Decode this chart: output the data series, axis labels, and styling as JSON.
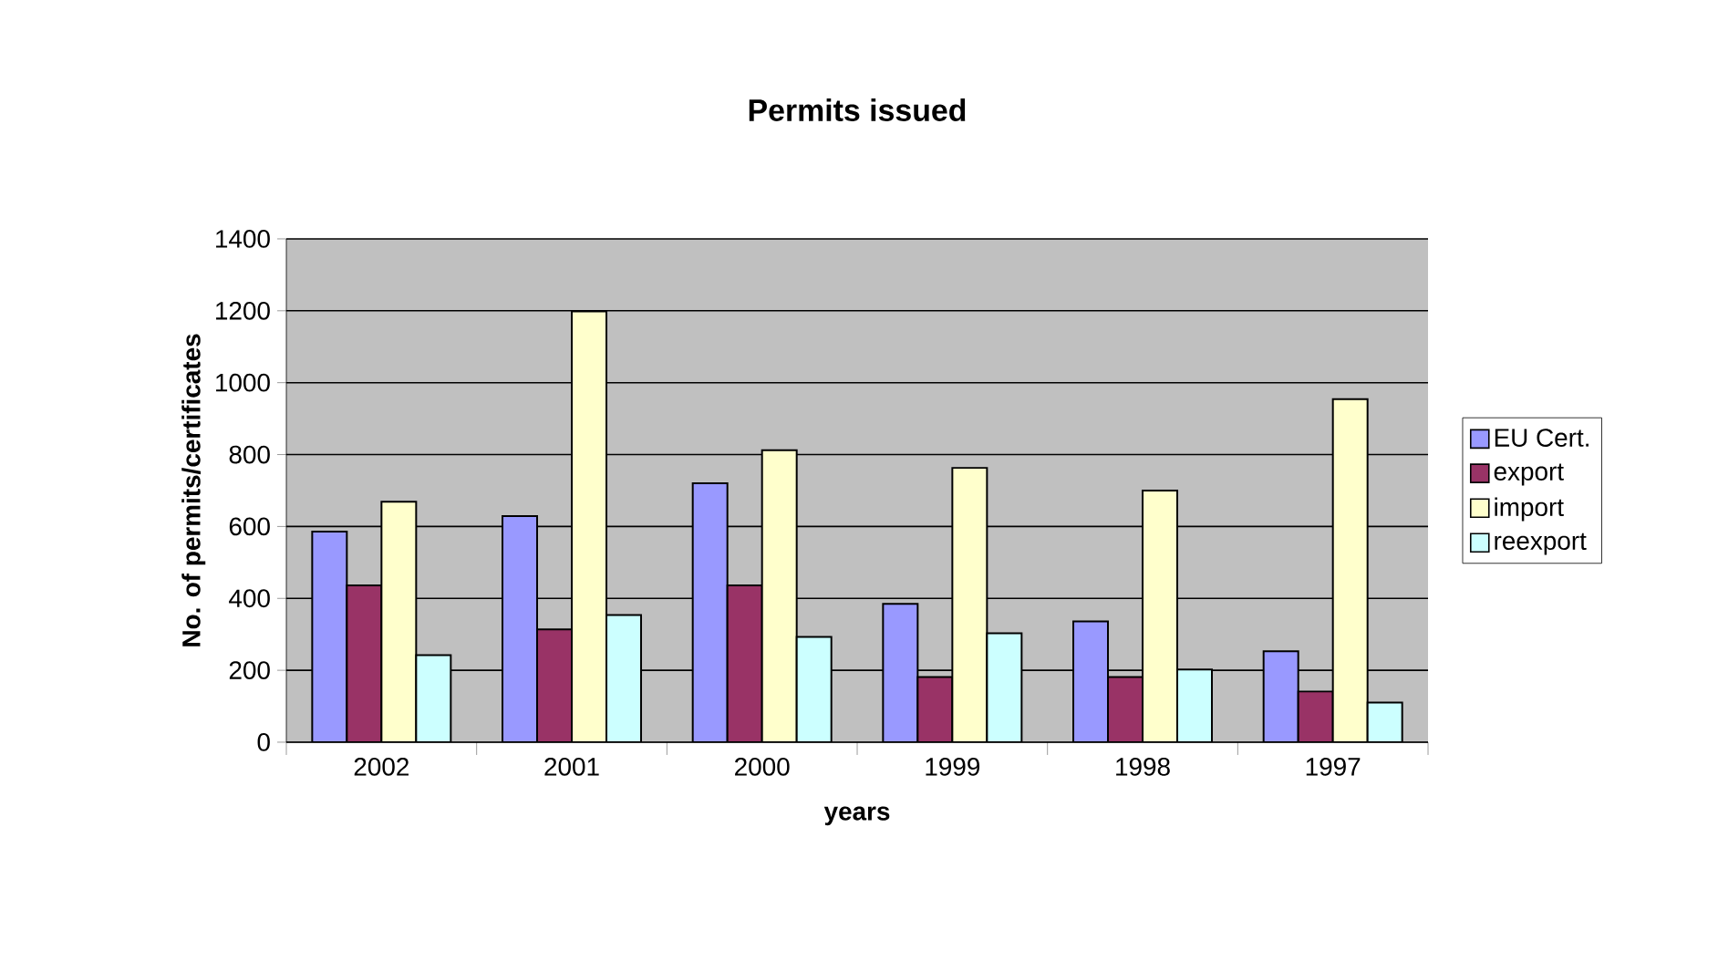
{
  "chart_data": {
    "type": "bar",
    "title": "Permits issued",
    "xlabel": "years",
    "ylabel": "No. of permits/certificates",
    "categories": [
      "2002",
      "2001",
      "2000",
      "1999",
      "1998",
      "1997"
    ],
    "series": [
      {
        "name": "EU Cert.",
        "color": "#9999ff",
        "values": [
          586,
          629,
          720,
          385,
          336,
          253
        ]
      },
      {
        "name": "export",
        "color": "#993366",
        "values": [
          436,
          314,
          436,
          181,
          181,
          141
        ]
      },
      {
        "name": "import",
        "color": "#ffffcc",
        "values": [
          669,
          1198,
          812,
          763,
          700,
          954
        ]
      },
      {
        "name": "reexport",
        "color": "#ccffff",
        "values": [
          242,
          354,
          293,
          303,
          202,
          110
        ]
      }
    ],
    "ylim": [
      0,
      1400
    ],
    "yticks": [
      0,
      200,
      400,
      600,
      800,
      1000,
      1200,
      1400
    ],
    "grid": "y",
    "legend": "right"
  }
}
